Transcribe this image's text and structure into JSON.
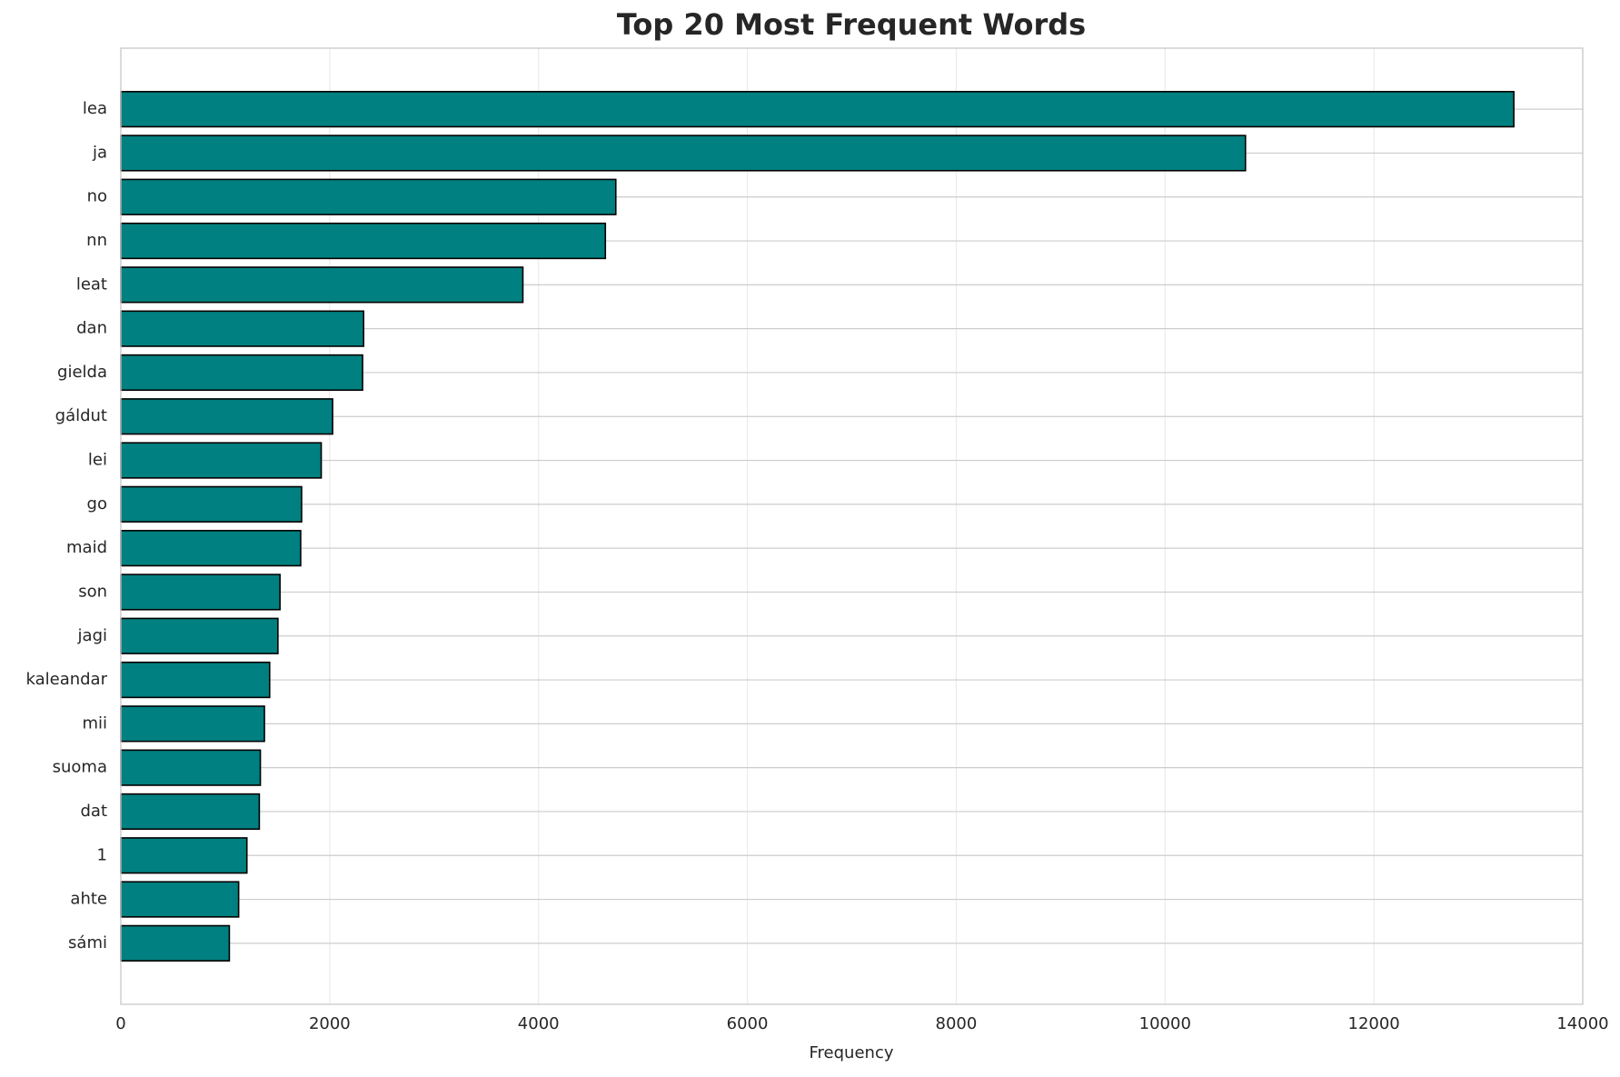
{
  "chart_data": {
    "type": "barh",
    "title": "Top 20 Most Frequent Words",
    "xlabel": "Frequency",
    "categories": [
      "lea",
      "ja",
      "no",
      "nn",
      "leat",
      "dan",
      "gielda",
      "gáldut",
      "lei",
      "go",
      "maid",
      "son",
      "jagi",
      "kaleandar",
      "mii",
      "suoma",
      "dat",
      "1",
      "ahte",
      "sámi"
    ],
    "values": [
      13340,
      10770,
      4740,
      4640,
      3850,
      2325,
      2315,
      2028,
      1919,
      1731,
      1722,
      1524,
      1504,
      1425,
      1375,
      1336,
      1326,
      1207,
      1128,
      1039
    ],
    "color": "#008080",
    "edgecolor": "#000000",
    "xlim": [
      0,
      14000
    ],
    "xticks": [
      0,
      2000,
      4000,
      6000,
      8000,
      10000,
      12000,
      14000
    ],
    "grid": true
  }
}
